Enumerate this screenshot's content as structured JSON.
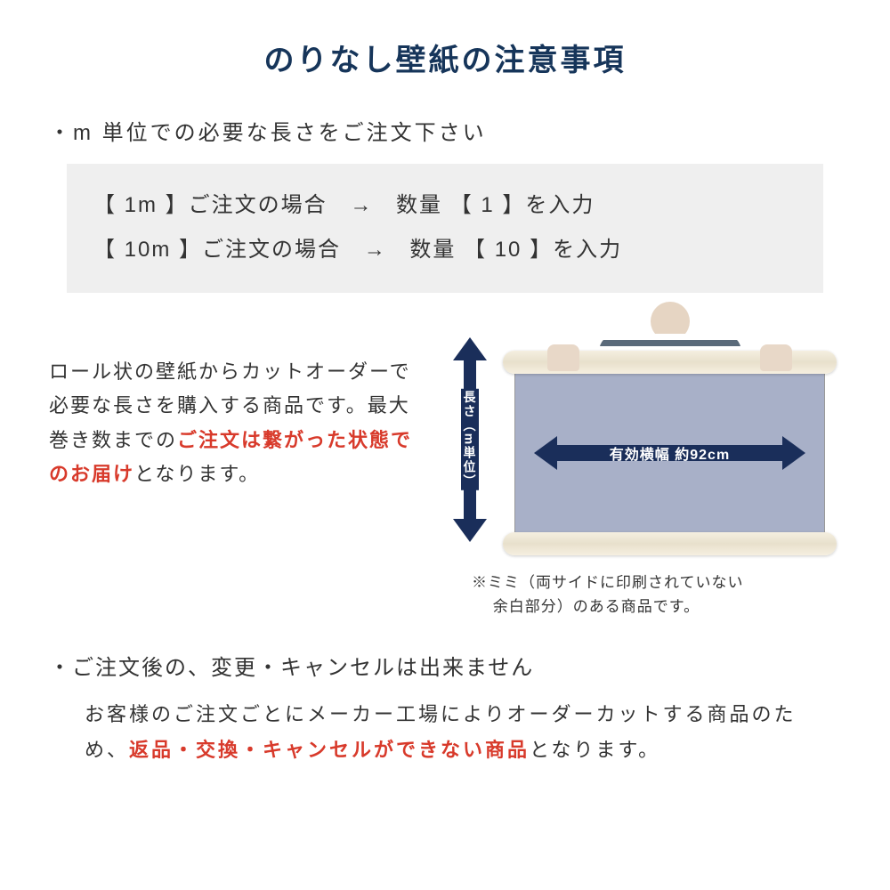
{
  "colors": {
    "title": "#16355a",
    "body_text": "#333333",
    "emphasis_red": "#d83a2b",
    "example_bg": "#efefef",
    "arrow_navy": "#1a2e5a",
    "sheet_fill": "#a8b0c8",
    "tube_fill": "#eee7d4",
    "page_bg": "#ffffff"
  },
  "title": "のりなし壁紙の注意事項",
  "section1": {
    "bullet": "・m 単位での必要な長さをご注文下さい",
    "examples": [
      {
        "left": "【 1m 】ご注文の場合",
        "arrow": "→",
        "right": "数量 【 1 】を入力"
      },
      {
        "left": "【 10m 】ご注文の場合",
        "arrow": "→",
        "right": "数量 【 10 】を入力"
      }
    ],
    "description": {
      "plain1": "ロール状の壁紙からカットオーダーで必要な長さを購入する商品です。最大巻き数までの",
      "red": "ご注文は繋がった状態でのお届け",
      "plain2": "となります。"
    }
  },
  "diagram": {
    "vertical_label": "長さ（m単位）",
    "width_label": "有効横幅 約92cm",
    "note_line1": "※ミミ（両サイドに印刷されていない",
    "note_line2": "余白部分）のある商品です。"
  },
  "section2": {
    "bullet": "・ご注文後の、変更・キャンセルは出来ません",
    "body_plain1": "お客様のご注文ごとにメーカー工場によりオーダーカットする商品のため、",
    "body_red": "返品・交換・キャンセルができない商品",
    "body_plain2": "となります。"
  }
}
